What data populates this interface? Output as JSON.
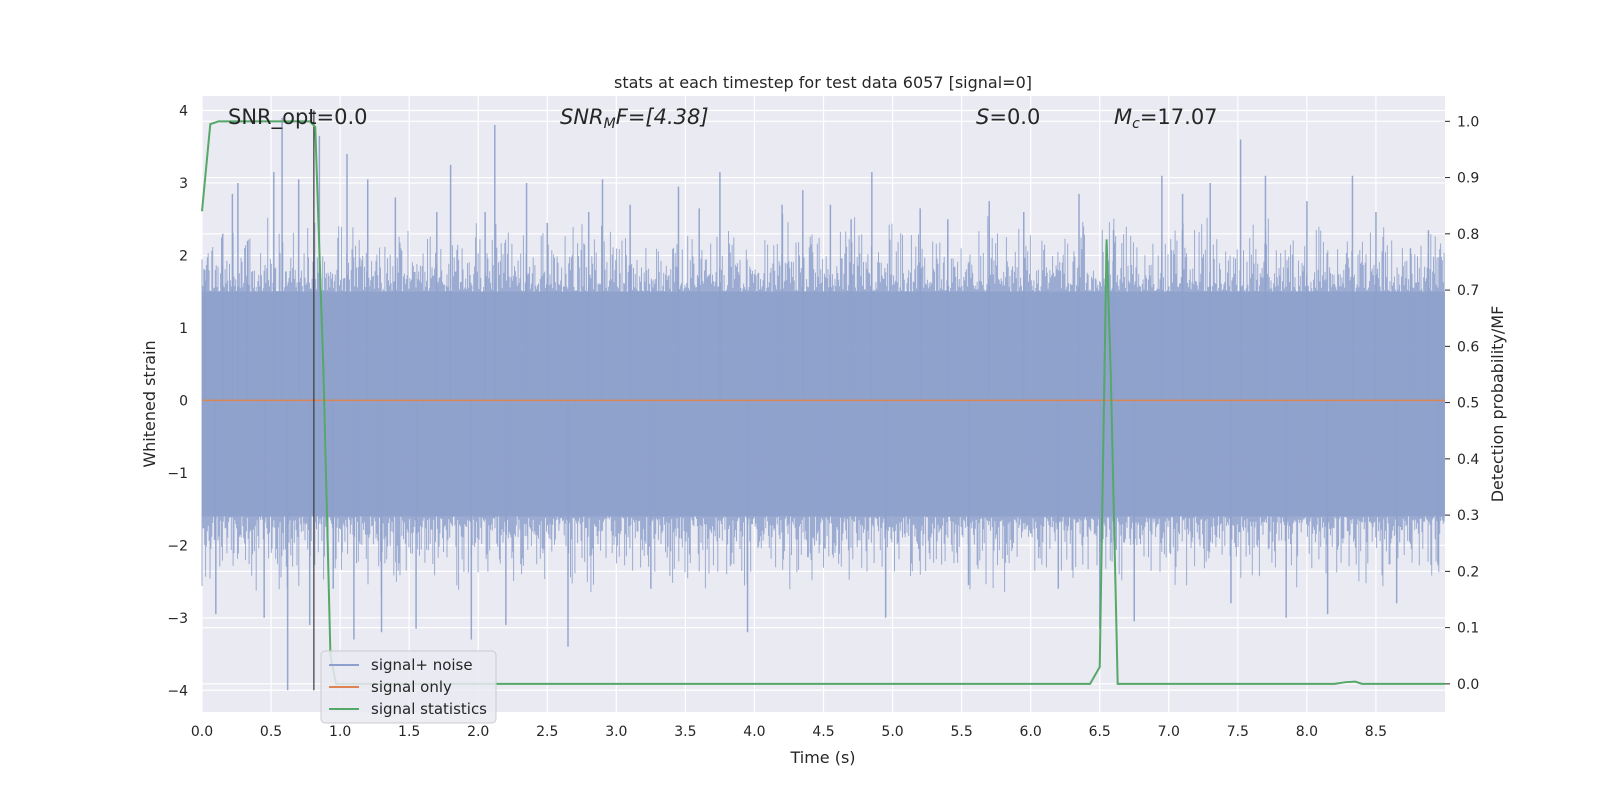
{
  "chart_data": {
    "type": "line",
    "title": "stats at each timestep for test data 6057 [signal=0]",
    "xlabel": "Time (s)",
    "ylabel_left": "Whitened strain",
    "ylabel_right": "Detection probability/MF",
    "xlim": [
      0.0,
      9.0
    ],
    "ylim_left": [
      -4.3,
      4.2
    ],
    "ylim_right": [
      -0.05,
      1.045
    ],
    "x_ticks": [
      "0.0",
      "0.5",
      "1.0",
      "1.5",
      "2.0",
      "2.5",
      "3.0",
      "3.5",
      "4.0",
      "4.5",
      "5.0",
      "5.5",
      "6.0",
      "6.5",
      "7.0",
      "7.5",
      "8.0",
      "8.5"
    ],
    "y_ticks_left": [
      "−4",
      "−3",
      "−2",
      "−1",
      "0",
      "1",
      "2",
      "3",
      "4"
    ],
    "y_ticks_right": [
      "0.0",
      "0.1",
      "0.2",
      "0.3",
      "0.4",
      "0.5",
      "0.6",
      "0.7",
      "0.8",
      "0.9",
      "1.0"
    ],
    "grid": true,
    "legend_position": "lower-left",
    "annotations": {
      "snr_opt": "SNR_opt=0.0",
      "snr_mf_var": "SNR",
      "snr_mf_sub": "M",
      "snr_mf_rest": "F=[4.38]",
      "s_var": "S",
      "s_rest": "=0.0",
      "mc_var": "M",
      "mc_sub": "c",
      "mc_rest": "=17.07"
    },
    "vline_x": 0.81,
    "series": [
      {
        "name": "signal+ noise",
        "color": "#8da0cb",
        "axis": "left",
        "style": "noise band (whitened strain, roughly ±1.5 body with spikes to ±4)",
        "envelope_upper": 1.5,
        "envelope_lower": -1.6,
        "spikes": [
          {
            "x": 0.02,
            "y": 1.8
          },
          {
            "x": 0.1,
            "y": -2.95
          },
          {
            "x": 0.15,
            "y": 2.3
          },
          {
            "x": 0.22,
            "y": 2.85
          },
          {
            "x": 0.26,
            "y": 3.0
          },
          {
            "x": 0.33,
            "y": 2.2
          },
          {
            "x": 0.45,
            "y": -3.0
          },
          {
            "x": 0.52,
            "y": 3.15
          },
          {
            "x": 0.58,
            "y": 3.9
          },
          {
            "x": 0.62,
            "y": -4.0
          },
          {
            "x": 0.7,
            "y": 3.05
          },
          {
            "x": 0.78,
            "y": -3.1
          },
          {
            "x": 0.85,
            "y": 3.65
          },
          {
            "x": 0.95,
            "y": -2.6
          },
          {
            "x": 1.05,
            "y": 3.4
          },
          {
            "x": 1.1,
            "y": -3.3
          },
          {
            "x": 1.2,
            "y": 3.05
          },
          {
            "x": 1.3,
            "y": -3.2
          },
          {
            "x": 1.4,
            "y": 2.8
          },
          {
            "x": 1.55,
            "y": -3.15
          },
          {
            "x": 1.7,
            "y": 2.6
          },
          {
            "x": 1.8,
            "y": 3.25
          },
          {
            "x": 1.95,
            "y": -3.3
          },
          {
            "x": 2.05,
            "y": 2.6
          },
          {
            "x": 2.12,
            "y": 3.8
          },
          {
            "x": 2.2,
            "y": -3.1
          },
          {
            "x": 2.35,
            "y": 3.0
          },
          {
            "x": 2.5,
            "y": 2.45
          },
          {
            "x": 2.65,
            "y": -3.4
          },
          {
            "x": 2.8,
            "y": 2.6
          },
          {
            "x": 2.9,
            "y": 3.05
          },
          {
            "x": 3.1,
            "y": 2.7
          },
          {
            "x": 3.25,
            "y": -2.6
          },
          {
            "x": 3.45,
            "y": 2.95
          },
          {
            "x": 3.6,
            "y": 2.65
          },
          {
            "x": 3.75,
            "y": 3.15
          },
          {
            "x": 3.95,
            "y": -3.2
          },
          {
            "x": 4.2,
            "y": 2.7
          },
          {
            "x": 4.35,
            "y": 2.9
          },
          {
            "x": 4.55,
            "y": 2.7
          },
          {
            "x": 4.7,
            "y": 2.5
          },
          {
            "x": 4.85,
            "y": 3.15
          },
          {
            "x": 4.95,
            "y": -3.0
          },
          {
            "x": 5.2,
            "y": 2.65
          },
          {
            "x": 5.4,
            "y": 2.5
          },
          {
            "x": 5.55,
            "y": -2.55
          },
          {
            "x": 5.7,
            "y": 2.75
          },
          {
            "x": 5.95,
            "y": 2.6
          },
          {
            "x": 6.2,
            "y": -2.6
          },
          {
            "x": 6.35,
            "y": 2.85
          },
          {
            "x": 6.5,
            "y": -3.15
          },
          {
            "x": 6.6,
            "y": 2.35
          },
          {
            "x": 6.75,
            "y": -3.05
          },
          {
            "x": 6.95,
            "y": 3.1
          },
          {
            "x": 7.1,
            "y": 2.85
          },
          {
            "x": 7.3,
            "y": 3.0
          },
          {
            "x": 7.45,
            "y": -2.8
          },
          {
            "x": 7.52,
            "y": 3.6
          },
          {
            "x": 7.7,
            "y": 3.1
          },
          {
            "x": 7.85,
            "y": -3.0
          },
          {
            "x": 8.0,
            "y": 2.75
          },
          {
            "x": 8.15,
            "y": -2.95
          },
          {
            "x": 8.33,
            "y": 3.1
          },
          {
            "x": 8.5,
            "y": 2.6
          },
          {
            "x": 8.65,
            "y": -2.8
          },
          {
            "x": 8.75,
            "y": 2.1
          },
          {
            "x": 8.88,
            "y": 2.35
          },
          {
            "x": 8.95,
            "y": -2.25
          }
        ]
      },
      {
        "name": "signal only",
        "color": "#dd8452",
        "axis": "left",
        "x": [
          0.0,
          9.0
        ],
        "y": [
          0.0,
          0.0
        ]
      },
      {
        "name": "signal statistics",
        "color": "#55a868",
        "axis": "right",
        "x": [
          0.0,
          0.06,
          0.12,
          0.2,
          0.6,
          0.78,
          0.82,
          0.88,
          0.93,
          0.97,
          1.1,
          6.0,
          6.43,
          6.5,
          6.55,
          6.58,
          6.63,
          6.7,
          8.2,
          8.28,
          8.35,
          8.4,
          9.0
        ],
        "y": [
          0.84,
          0.995,
          1.0,
          1.0,
          1.0,
          1.0,
          0.99,
          0.55,
          0.05,
          0.0,
          0.0,
          0.0,
          0.0,
          0.03,
          0.79,
          0.55,
          0.0,
          0.0,
          0.0,
          0.003,
          0.004,
          0.0,
          0.0
        ]
      }
    ]
  }
}
